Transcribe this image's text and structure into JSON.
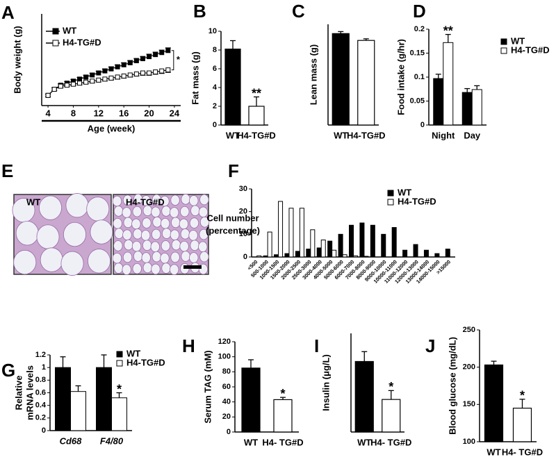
{
  "chart_data": [
    {
      "label": "A",
      "type": "line",
      "xlabel": "Age (week)",
      "ylabel": "Body weight (g)",
      "x": [
        4,
        5,
        6,
        7,
        8,
        9,
        10,
        11,
        12,
        13,
        14,
        15,
        16,
        17,
        18,
        19,
        20,
        21,
        22,
        23
      ],
      "xlim": [
        3,
        25
      ],
      "xticks": [
        4,
        8,
        12,
        16,
        20,
        24
      ],
      "ylim": [
        10,
        55
      ],
      "series": [
        {
          "name": "WT",
          "color": "#000000",
          "values": [
            15,
            18,
            20,
            21,
            22,
            23,
            24,
            25,
            26,
            27,
            28,
            29,
            30,
            31,
            32,
            33,
            34,
            35,
            36,
            37
          ],
          "errors": [
            0.6,
            0.7,
            0.7,
            0.8,
            0.8,
            0.8,
            0.9,
            0.9,
            0.9,
            1.0,
            1.0,
            1.0,
            1.0,
            1.1,
            1.1,
            1.1,
            1.2,
            1.2,
            1.2,
            1.3
          ]
        },
        {
          "name": "H4-TG#D",
          "color": "#ffffff",
          "values": [
            15,
            18,
            19.5,
            20,
            20.5,
            21,
            21.5,
            22,
            22.5,
            23,
            23.5,
            24,
            24.5,
            25,
            25.5,
            26,
            26,
            26.5,
            27,
            27.5
          ],
          "errors": [
            0.6,
            0.6,
            0.7,
            0.7,
            0.7,
            0.8,
            0.8,
            0.8,
            0.9,
            0.9,
            0.9,
            1.0,
            1.0,
            1.0,
            1.0,
            1.1,
            1.1,
            1.1,
            1.2,
            1.2
          ]
        }
      ],
      "annotation": "*"
    },
    {
      "label": "B",
      "type": "bar",
      "ylabel": "Fat mass (g)",
      "categories": [
        "WT",
        "H4-TG#D"
      ],
      "values": [
        8.1,
        2.0
      ],
      "errors": [
        0.9,
        1.0
      ],
      "colors": [
        "#000000",
        "#ffffff"
      ],
      "ylim": [
        0,
        10
      ],
      "yticks": [
        0,
        2,
        4,
        6,
        8,
        10
      ],
      "annotation": "**"
    },
    {
      "label": "C",
      "type": "bar",
      "ylabel": "Lean mass (g)",
      "categories": [
        "WT",
        "H4-TG#D"
      ],
      "values": [
        22.7,
        21.0
      ],
      "errors": [
        0.5,
        0.4
      ],
      "colors": [
        "#000000",
        "#ffffff"
      ],
      "ylim": [
        0,
        25
      ]
    },
    {
      "label": "D",
      "type": "groupbar",
      "ylabel": "Food intake (g/hr)",
      "categories": [
        "Night",
        "Day"
      ],
      "series": [
        {
          "name": "WT",
          "color": "#000000",
          "values": [
            0.097,
            0.068
          ],
          "errors": [
            0.009,
            0.008
          ]
        },
        {
          "name": "H4-TG#D",
          "color": "#ffffff",
          "values": [
            0.172,
            0.074
          ],
          "errors": [
            0.017,
            0.008
          ]
        }
      ],
      "ylim": [
        0,
        0.2
      ],
      "yticks": [
        0,
        0.05,
        0.1,
        0.15,
        0.2
      ],
      "annotation": "**"
    },
    {
      "label": "E",
      "type": "micrograph",
      "labels": [
        "WT",
        "H4-TG#D"
      ]
    },
    {
      "label": "F",
      "type": "groupbar",
      "ylabel": [
        "Cell number",
        "(percentage)"
      ],
      "categories": [
        "<500",
        "500-1000",
        "1000-1500",
        "1500-2000",
        "2000-2500",
        "2500-3000",
        "3000-4000",
        "4000-5000",
        "5000-6000",
        "6000-7000",
        "7000-8000",
        "8000-9000",
        "9000-10000",
        "10000-11000",
        "11000-12000",
        "12000-13000",
        "13000-14000",
        "14000-15000",
        ">15000"
      ],
      "series": [
        {
          "name": "WT",
          "color": "#000000",
          "values": [
            0,
            0.5,
            1,
            1.5,
            2.5,
            3.5,
            4,
            7,
            10,
            14,
            15,
            14,
            10,
            13,
            3,
            5.5,
            3,
            1.5,
            3.5
          ]
        },
        {
          "name": "H4-TG#D",
          "color": "#ffffff",
          "values": [
            0.5,
            11,
            24.5,
            21.5,
            21.5,
            12,
            7.5,
            3,
            1,
            0.5,
            0.3,
            0,
            0,
            0,
            0,
            0,
            0,
            0,
            0
          ]
        }
      ],
      "ylim": [
        0,
        30
      ],
      "yticks": [
        0,
        10,
        20,
        30
      ]
    },
    {
      "label": "G",
      "type": "groupbar",
      "ylabel": [
        "Relative",
        "mRNA levels"
      ],
      "categories": [
        "Cd68",
        "F4/80"
      ],
      "series": [
        {
          "name": "WT",
          "color": "#000000",
          "values": [
            1.0,
            1.0
          ],
          "errors": [
            0.17,
            0.2
          ]
        },
        {
          "name": "H4-TG#D",
          "color": "#ffffff",
          "values": [
            0.62,
            0.52
          ],
          "errors": [
            0.09,
            0.08
          ]
        }
      ],
      "ylim": [
        0,
        1.2
      ],
      "yticks": [
        0,
        0.2,
        0.4,
        0.6,
        0.8,
        1,
        1.2
      ],
      "annotation": "*"
    },
    {
      "label": "H",
      "type": "bar",
      "ylabel": "Serum TAG (mM)",
      "categories": [
        "WT",
        "H4- TG#D"
      ],
      "values": [
        85,
        43
      ],
      "errors": [
        11,
        3
      ],
      "colors": [
        "#000000",
        "#ffffff"
      ],
      "ylim": [
        0,
        120
      ],
      "yticks": [
        0,
        20,
        40,
        60,
        80,
        100,
        120
      ],
      "annotation": "*"
    },
    {
      "label": "I",
      "type": "bar",
      "ylabel": "Insulin (μg/L)",
      "categories": [
        "WT",
        "H4- TG#D"
      ],
      "values": [
        1.43,
        0.66
      ],
      "errors": [
        0.2,
        0.18
      ],
      "colors": [
        "#000000",
        "#ffffff"
      ],
      "ylim": [
        0,
        2
      ],
      "annotation": "*"
    },
    {
      "label": "J",
      "type": "bar",
      "ylabel": "Blood glucose (mg/dL)",
      "categories": [
        "WT",
        "H4- TG#D"
      ],
      "values": [
        203,
        145
      ],
      "errors": [
        5,
        12
      ],
      "colors": [
        "#000000",
        "#ffffff"
      ],
      "ylim": [
        100,
        250
      ],
      "yticks": [
        100,
        150,
        200,
        250
      ],
      "annotation": "*"
    }
  ]
}
